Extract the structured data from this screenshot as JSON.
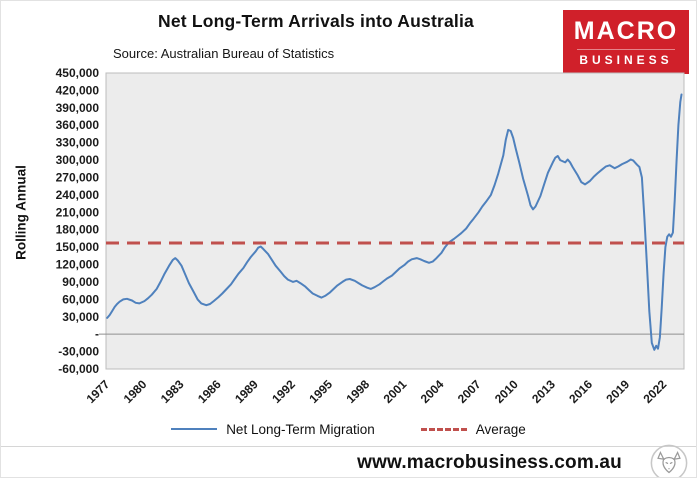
{
  "logo": {
    "line1": "MACRO",
    "line2": "BUSINESS",
    "color": "#d0202a"
  },
  "footer": {
    "url": "www.macrobusiness.com.au"
  },
  "chart_data": {
    "type": "line",
    "title": "Net Long-Term Arrivals into Australia",
    "subtitle": "Source: Australian Bureau of Statistics",
    "ylabel": "Rolling Annual",
    "x_domain": [
      1976.9,
      2023.6
    ],
    "ylim": [
      -60000,
      450000
    ],
    "grid": false,
    "legend_position": "bottom",
    "plot_background": "#ececec",
    "y_tick_values": [
      450000,
      420000,
      390000,
      360000,
      330000,
      300000,
      270000,
      240000,
      210000,
      180000,
      150000,
      120000,
      90000,
      60000,
      30000,
      0,
      -30000,
      -60000
    ],
    "y_tick_labels": [
      "450,000",
      "420,000",
      "390,000",
      "360,000",
      "330,000",
      "300,000",
      "270,000",
      "240,000",
      "210,000",
      "180,000",
      "150,000",
      "120,000",
      "90,000",
      "60,000",
      "30,000",
      "-",
      "-30,000",
      "-60,000"
    ],
    "x_tick_years": [
      1977,
      1980,
      1983,
      1986,
      1989,
      1992,
      1995,
      1998,
      2001,
      2004,
      2007,
      2010,
      2013,
      2016,
      2019,
      2022
    ],
    "series": [
      {
        "name": "Net Long-Term Migration",
        "color": "#4f81bd",
        "points": [
          [
            1977.0,
            28000
          ],
          [
            1977.2,
            33000
          ],
          [
            1977.4,
            40000
          ],
          [
            1977.6,
            47000
          ],
          [
            1977.8,
            52000
          ],
          [
            1978.0,
            56000
          ],
          [
            1978.3,
            60000
          ],
          [
            1978.6,
            61000
          ],
          [
            1979.0,
            58000
          ],
          [
            1979.3,
            54000
          ],
          [
            1979.6,
            53000
          ],
          [
            1980.0,
            57000
          ],
          [
            1980.3,
            62000
          ],
          [
            1980.6,
            68000
          ],
          [
            1981.0,
            78000
          ],
          [
            1981.3,
            90000
          ],
          [
            1981.6,
            103000
          ],
          [
            1982.0,
            118000
          ],
          [
            1982.3,
            128000
          ],
          [
            1982.5,
            131000
          ],
          [
            1982.7,
            127000
          ],
          [
            1983.0,
            118000
          ],
          [
            1983.3,
            103000
          ],
          [
            1983.6,
            88000
          ],
          [
            1984.0,
            72000
          ],
          [
            1984.3,
            60000
          ],
          [
            1984.6,
            53000
          ],
          [
            1985.0,
            50000
          ],
          [
            1985.3,
            52000
          ],
          [
            1985.6,
            57000
          ],
          [
            1986.0,
            64000
          ],
          [
            1986.3,
            70000
          ],
          [
            1986.6,
            77000
          ],
          [
            1987.0,
            86000
          ],
          [
            1987.3,
            95000
          ],
          [
            1987.6,
            104000
          ],
          [
            1988.0,
            114000
          ],
          [
            1988.3,
            124000
          ],
          [
            1988.6,
            133000
          ],
          [
            1989.0,
            143000
          ],
          [
            1989.2,
            149000
          ],
          [
            1989.4,
            151000
          ],
          [
            1989.6,
            147000
          ],
          [
            1990.0,
            138000
          ],
          [
            1990.3,
            128000
          ],
          [
            1990.6,
            118000
          ],
          [
            1991.0,
            108000
          ],
          [
            1991.3,
            100000
          ],
          [
            1991.6,
            94000
          ],
          [
            1992.0,
            90000
          ],
          [
            1992.3,
            92000
          ],
          [
            1992.6,
            88000
          ],
          [
            1993.0,
            82000
          ],
          [
            1993.3,
            76000
          ],
          [
            1993.6,
            70000
          ],
          [
            1994.0,
            66000
          ],
          [
            1994.3,
            63000
          ],
          [
            1994.6,
            66000
          ],
          [
            1995.0,
            72000
          ],
          [
            1995.3,
            78000
          ],
          [
            1995.6,
            84000
          ],
          [
            1996.0,
            90000
          ],
          [
            1996.3,
            94000
          ],
          [
            1996.6,
            95000
          ],
          [
            1997.0,
            92000
          ],
          [
            1997.3,
            88000
          ],
          [
            1997.6,
            84000
          ],
          [
            1998.0,
            80000
          ],
          [
            1998.3,
            78000
          ],
          [
            1998.6,
            81000
          ],
          [
            1999.0,
            86000
          ],
          [
            1999.3,
            91000
          ],
          [
            1999.6,
            96000
          ],
          [
            2000.0,
            101000
          ],
          [
            2000.3,
            107000
          ],
          [
            2000.6,
            113000
          ],
          [
            2001.0,
            119000
          ],
          [
            2001.3,
            125000
          ],
          [
            2001.6,
            129000
          ],
          [
            2002.0,
            131000
          ],
          [
            2002.3,
            129000
          ],
          [
            2002.6,
            126000
          ],
          [
            2003.0,
            123000
          ],
          [
            2003.3,
            125000
          ],
          [
            2003.6,
            131000
          ],
          [
            2004.0,
            140000
          ],
          [
            2004.3,
            150000
          ],
          [
            2004.6,
            158000
          ],
          [
            2005.0,
            164000
          ],
          [
            2005.3,
            169000
          ],
          [
            2005.6,
            174000
          ],
          [
            2006.0,
            182000
          ],
          [
            2006.3,
            191000
          ],
          [
            2006.6,
            199000
          ],
          [
            2007.0,
            210000
          ],
          [
            2007.3,
            220000
          ],
          [
            2007.6,
            228000
          ],
          [
            2008.0,
            240000
          ],
          [
            2008.3,
            257000
          ],
          [
            2008.6,
            277000
          ],
          [
            2009.0,
            308000
          ],
          [
            2009.2,
            335000
          ],
          [
            2009.4,
            352000
          ],
          [
            2009.6,
            350000
          ],
          [
            2009.8,
            338000
          ],
          [
            2010.0,
            320000
          ],
          [
            2010.3,
            295000
          ],
          [
            2010.6,
            268000
          ],
          [
            2011.0,
            238000
          ],
          [
            2011.2,
            222000
          ],
          [
            2011.4,
            215000
          ],
          [
            2011.6,
            220000
          ],
          [
            2012.0,
            238000
          ],
          [
            2012.3,
            258000
          ],
          [
            2012.6,
            278000
          ],
          [
            2013.0,
            296000
          ],
          [
            2013.2,
            304000
          ],
          [
            2013.4,
            307000
          ],
          [
            2013.6,
            300000
          ],
          [
            2014.0,
            296000
          ],
          [
            2014.2,
            301000
          ],
          [
            2014.4,
            296000
          ],
          [
            2014.6,
            288000
          ],
          [
            2015.0,
            274000
          ],
          [
            2015.3,
            262000
          ],
          [
            2015.6,
            258000
          ],
          [
            2016.0,
            264000
          ],
          [
            2016.3,
            271000
          ],
          [
            2016.6,
            277000
          ],
          [
            2017.0,
            284000
          ],
          [
            2017.3,
            289000
          ],
          [
            2017.6,
            291000
          ],
          [
            2018.0,
            286000
          ],
          [
            2018.3,
            289000
          ],
          [
            2018.6,
            293000
          ],
          [
            2019.0,
            297000
          ],
          [
            2019.3,
            301000
          ],
          [
            2019.5,
            299000
          ],
          [
            2019.8,
            292000
          ],
          [
            2020.0,
            288000
          ],
          [
            2020.2,
            270000
          ],
          [
            2020.4,
            200000
          ],
          [
            2020.6,
            120000
          ],
          [
            2020.8,
            40000
          ],
          [
            2021.0,
            -15000
          ],
          [
            2021.2,
            -27000
          ],
          [
            2021.35,
            -20000
          ],
          [
            2021.5,
            -25000
          ],
          [
            2021.65,
            -5000
          ],
          [
            2021.8,
            45000
          ],
          [
            2021.95,
            105000
          ],
          [
            2022.1,
            150000
          ],
          [
            2022.25,
            168000
          ],
          [
            2022.4,
            172000
          ],
          [
            2022.55,
            168000
          ],
          [
            2022.7,
            175000
          ],
          [
            2022.85,
            230000
          ],
          [
            2023.0,
            300000
          ],
          [
            2023.15,
            360000
          ],
          [
            2023.3,
            400000
          ],
          [
            2023.4,
            413000
          ]
        ]
      }
    ],
    "average": {
      "name": "Average",
      "value": 157000,
      "color": "#c0504d",
      "style": "dashed"
    }
  }
}
